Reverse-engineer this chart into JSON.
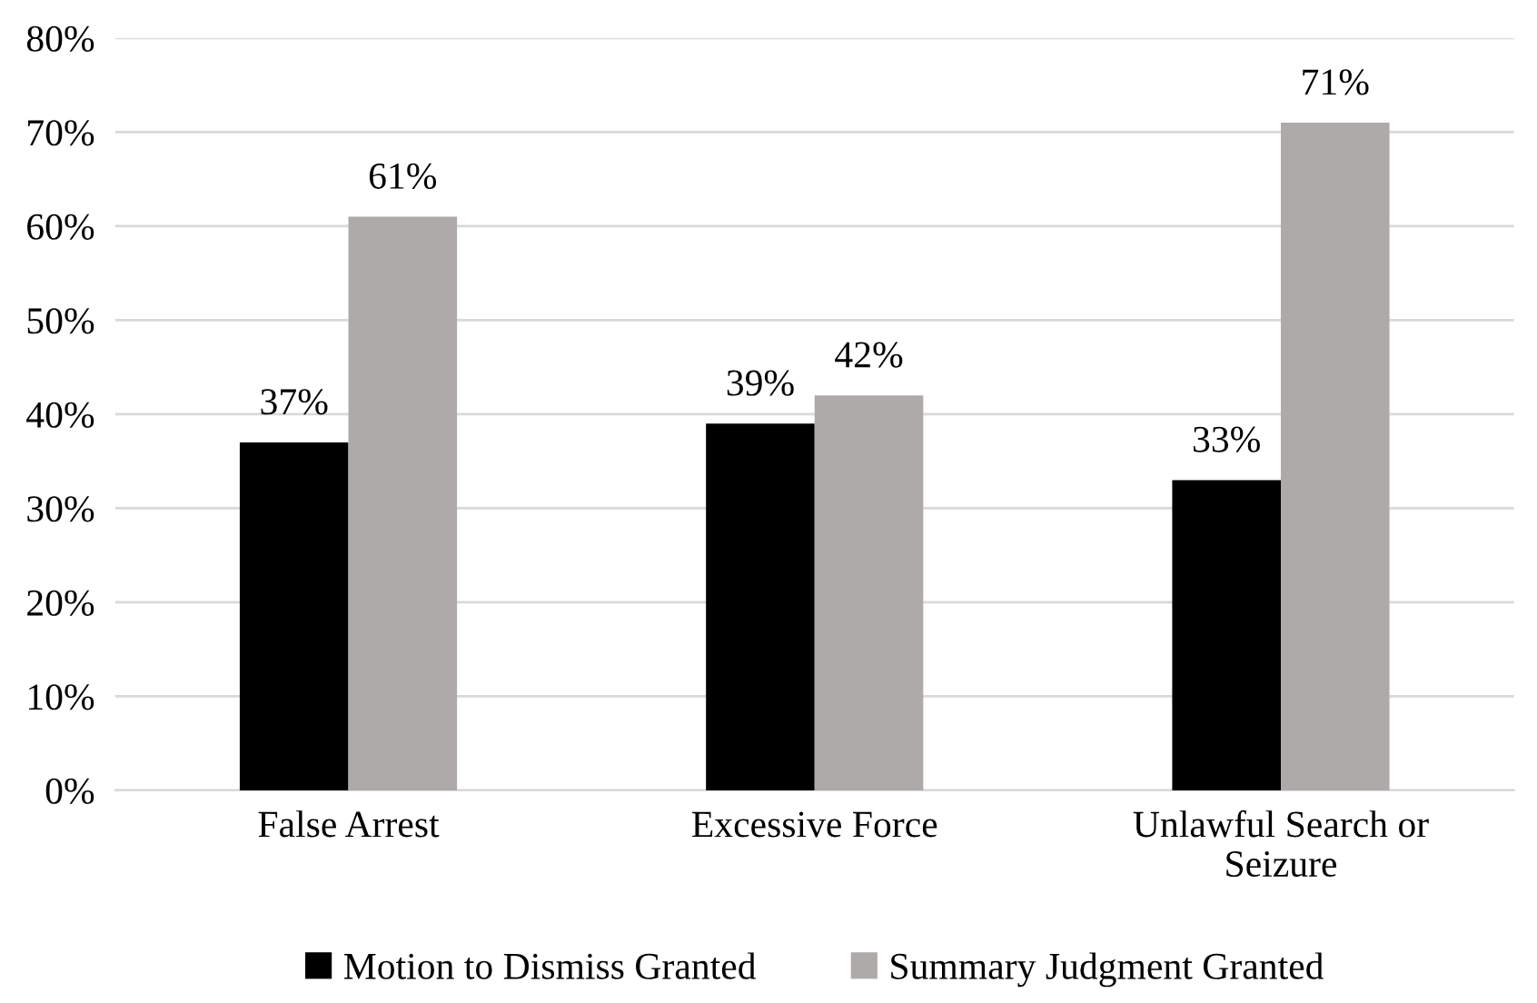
{
  "chart_data": {
    "type": "bar",
    "categories": [
      "False Arrest",
      "Excessive Force",
      "Unlawful Search or\nSeizure"
    ],
    "series": [
      {
        "name": "Motion to Dismiss Granted",
        "color": "#000000",
        "values": [
          37,
          39,
          33
        ],
        "value_labels": [
          "37%",
          "39%",
          "33%"
        ]
      },
      {
        "name": "Summary Judgment Granted",
        "color": "#aeaaaa",
        "values": [
          61,
          42,
          71
        ],
        "value_labels": [
          "61%",
          "42%",
          "71%"
        ]
      }
    ],
    "ylim": [
      0,
      80
    ],
    "yticks": [
      {
        "value": 0,
        "label": "0%"
      },
      {
        "value": 10,
        "label": "10%"
      },
      {
        "value": 20,
        "label": "20%"
      },
      {
        "value": 30,
        "label": "30%"
      },
      {
        "value": 40,
        "label": "40%"
      },
      {
        "value": 50,
        "label": "50%"
      },
      {
        "value": 60,
        "label": "60%"
      },
      {
        "value": 70,
        "label": "70%"
      },
      {
        "value": 80,
        "label": "80%"
      }
    ],
    "grid": "y",
    "legend": "bottom"
  }
}
